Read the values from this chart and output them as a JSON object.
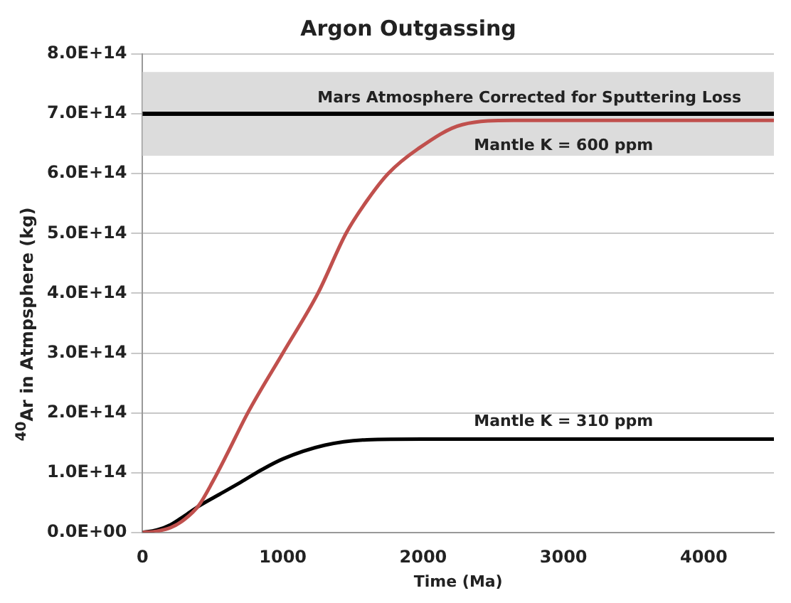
{
  "chart_data": {
    "type": "line",
    "title": "Argon Outgassing",
    "xlabel": "Time (Ma)",
    "ylabel": "$^{40}$Ar in Atmpsphere  (kg)",
    "xlim": [
      0,
      4500
    ],
    "xticks": [
      0,
      1000,
      2000,
      3000,
      4000
    ],
    "ylim": [
      0,
      800000000000000.0
    ],
    "yticks": [
      {
        "value": 0,
        "label": "0.0E+00"
      },
      {
        "value": 100000000000000.0,
        "label": "1.0E+14"
      },
      {
        "value": 200000000000000.0,
        "label": "2.0E+14"
      },
      {
        "value": 300000000000000.0,
        "label": "3.0E+14"
      },
      {
        "value": 400000000000000.0,
        "label": "4.0E+14"
      },
      {
        "value": 500000000000000.0,
        "label": "5.0E+14"
      },
      {
        "value": 600000000000000.0,
        "label": "6.0E+14"
      },
      {
        "value": 700000000000000.0,
        "label": "7.0E+14"
      },
      {
        "value": 800000000000000.0,
        "label": "8.0E+14"
      }
    ],
    "grid": "y",
    "legend": false,
    "marker": "none",
    "line_style": "solid",
    "series": [
      {
        "name": "Mantle K = 600 ppm",
        "color": "#c0504d",
        "x": [
          0,
          100,
          200,
          300,
          400,
          500,
          600,
          750,
          1000,
          1250,
          1450,
          1600,
          1750,
          1960,
          2280,
          2640,
          3000,
          3500,
          4000,
          4500
        ],
        "values": [
          0,
          2000000000000.0,
          8000000000000.0,
          22000000000000.0,
          45000000000000.0,
          85000000000000.0,
          130000000000000.0,
          200000000000000.0,
          300000000000000.0,
          400000000000000.0,
          500000000000000.0,
          555000000000000.0,
          600000000000000.0,
          641000000000000.0,
          682000000000000.0,
          689000000000000.0,
          689000000000000.0,
          689000000000000.0,
          689000000000000.0,
          689000000000000.0
        ]
      },
      {
        "name": "Mantle K = 310 ppm",
        "color": "#000000",
        "x": [
          0,
          100,
          200,
          300,
          400,
          550,
          700,
          850,
          1000,
          1300,
          1600,
          2000,
          2500,
          3000,
          3500,
          4000,
          4500
        ],
        "values": [
          0,
          4000000000000.0,
          13000000000000.0,
          28000000000000.0,
          44000000000000.0,
          64000000000000.0,
          84000000000000.0,
          105000000000000.0,
          123000000000000.0,
          146000000000000.0,
          155000000000000.0,
          156000000000000.0,
          156000000000000.0,
          156000000000000.0,
          156000000000000.0,
          156000000000000.0,
          156000000000000.0
        ]
      }
    ],
    "ref_lines": [
      {
        "axis": "y",
        "value": 700000000000000.0,
        "label": "Mars Atmosphere Corrected for Sputtering Loss",
        "color": "#000000"
      }
    ],
    "bands": [
      {
        "axis": "y",
        "from": 630000000000000.0,
        "to": 770000000000000.0,
        "color": "#dcdcdc"
      }
    ]
  }
}
